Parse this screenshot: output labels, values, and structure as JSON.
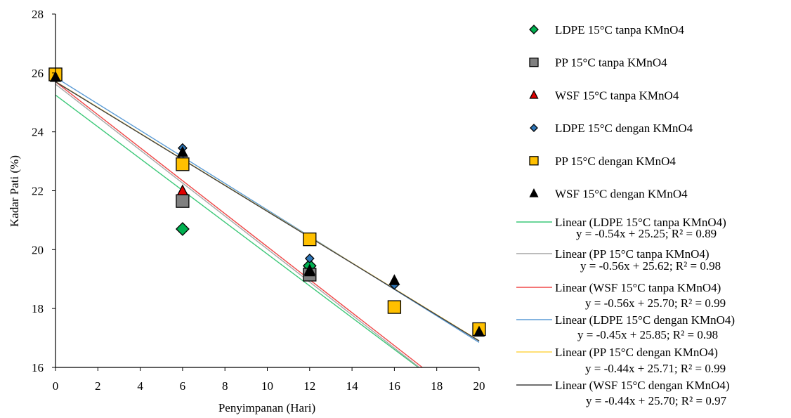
{
  "chart_data": {
    "type": "scatter",
    "xlabel": "Penyimpanan (Hari)",
    "ylabel": "Kadar Pati (%)",
    "xlim": [
      0,
      20
    ],
    "ylim": [
      16,
      28
    ],
    "xticks": [
      0,
      2,
      4,
      6,
      8,
      10,
      12,
      14,
      16,
      18,
      20
    ],
    "yticks": [
      16,
      18,
      20,
      22,
      24,
      26,
      28
    ],
    "grid": false,
    "legend_position": "right",
    "series": [
      {
        "name": "LDPE 15°C tanpa KMnO4",
        "marker": "diamond",
        "color": "#00B050",
        "size": "large",
        "x": [
          0,
          6,
          12
        ],
        "y": [
          25.95,
          20.7,
          19.45
        ]
      },
      {
        "name": "PP 15°C tanpa KMnO4",
        "marker": "square",
        "color": "#808080",
        "size": "large",
        "x": [
          0,
          6,
          12
        ],
        "y": [
          25.95,
          21.65,
          19.15
        ]
      },
      {
        "name": "WSF 15°C tanpa KMnO4",
        "marker": "triangle",
        "color": "#E00000",
        "size": "large",
        "x": [
          0,
          6,
          12
        ],
        "y": [
          25.9,
          22.0,
          19.3
        ]
      },
      {
        "name": "LDPE 15°C dengan KMnO4",
        "marker": "diamond",
        "color": "#2E75B6",
        "size": "small",
        "x": [
          0,
          6,
          12,
          16
        ],
        "y": [
          25.95,
          23.45,
          19.7,
          18.8
        ]
      },
      {
        "name": "PP 15°C dengan KMnO4",
        "marker": "square",
        "color": "#FFC000",
        "size": "large",
        "x": [
          0,
          6,
          12,
          16,
          20
        ],
        "y": [
          25.95,
          22.9,
          20.35,
          18.05,
          17.3
        ]
      },
      {
        "name": "WSF 15°C dengan KMnO4",
        "marker": "triangle",
        "color": "#000000",
        "size": "large",
        "x": [
          0,
          6,
          12,
          16,
          20
        ],
        "y": [
          25.85,
          23.3,
          19.25,
          18.95,
          17.2
        ]
      }
    ],
    "trendlines": [
      {
        "name": "Linear (LDPE 15°C tanpa KMnO4)",
        "color": "#3CC878",
        "slope": -0.54,
        "intercept": 25.25,
        "equation": "y = -0.54x + 25.25;  R² = 0.89"
      },
      {
        "name": "Linear (PP 15°C tanpa KMnO4)",
        "color": "#A6A6A6",
        "slope": -0.56,
        "intercept": 25.62,
        "equation": "y = -0.56x + 25.62;  R² = 0.98"
      },
      {
        "name": "Linear (WSF 15°C tanpa KMnO4)",
        "color": "#F04848",
        "slope": -0.56,
        "intercept": 25.7,
        "equation": "y = -0.56x + 25.70;  R² = 0.99"
      },
      {
        "name": "Linear (LDPE 15°C dengan KMnO4)",
        "color": "#5B9BD5",
        "slope": -0.45,
        "intercept": 25.85,
        "equation": "y = -0.45x + 25.85;  R² = 0.98"
      },
      {
        "name": "Linear (PP 15°C dengan KMnO4)",
        "color": "#FFD54A",
        "slope": -0.44,
        "intercept": 25.71,
        "equation": "y = -0.44x + 25.71;  R² = 0.99"
      },
      {
        "name": "Linear (WSF 15°C dengan KMnO4)",
        "color": "#404040",
        "slope": -0.44,
        "intercept": 25.7,
        "equation": "y = -0.44x + 25.70;  R² = 0.97"
      }
    ]
  }
}
